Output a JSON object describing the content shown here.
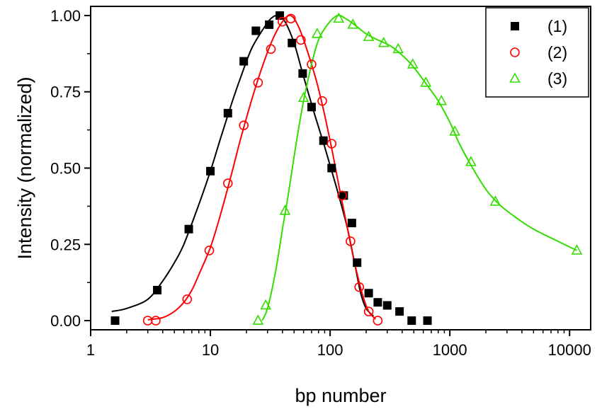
{
  "chart_data": {
    "type": "scatter",
    "xlabel": "bp number",
    "ylabel": "Intensity (normalized)",
    "x_scale": "log",
    "xlim": [
      1,
      15000
    ],
    "ylim": [
      -0.03,
      1.03
    ],
    "x_ticks": [
      1,
      10,
      100,
      1000,
      10000
    ],
    "x_tick_labels": [
      "1",
      "10",
      "100",
      "1000",
      "10000"
    ],
    "y_ticks": [
      0,
      0.25,
      0.5,
      0.75,
      1.0
    ],
    "y_tick_labels": [
      "0.00",
      "0.25",
      "0.50",
      "0.75",
      "1.00"
    ],
    "legend_position": "top-right",
    "series": [
      {
        "name": "(1)",
        "color": "#000000",
        "marker": "filled-square",
        "points": [
          [
            1.6,
            0.0
          ],
          [
            3.6,
            0.1
          ],
          [
            6.6,
            0.3
          ],
          [
            10,
            0.49
          ],
          [
            14,
            0.68
          ],
          [
            19,
            0.85
          ],
          [
            24,
            0.95
          ],
          [
            31,
            0.97
          ],
          [
            38,
            1.0
          ],
          [
            48,
            0.91
          ],
          [
            59,
            0.81
          ],
          [
            70,
            0.7
          ],
          [
            88,
            0.59
          ],
          [
            103,
            0.5
          ],
          [
            130,
            0.41
          ],
          [
            152,
            0.32
          ],
          [
            168,
            0.19
          ],
          [
            210,
            0.09
          ],
          [
            250,
            0.06
          ],
          [
            300,
            0.05
          ],
          [
            380,
            0.03
          ],
          [
            480,
            0.0
          ],
          [
            650,
            0.0
          ]
        ],
        "fit": [
          [
            1.5,
            0.03
          ],
          [
            2,
            0.04
          ],
          [
            3,
            0.07
          ],
          [
            4,
            0.13
          ],
          [
            5,
            0.19
          ],
          [
            6,
            0.25
          ],
          [
            8,
            0.38
          ],
          [
            10,
            0.49
          ],
          [
            12,
            0.59
          ],
          [
            15,
            0.71
          ],
          [
            18,
            0.8
          ],
          [
            22,
            0.89
          ],
          [
            27,
            0.95
          ],
          [
            32,
            0.99
          ],
          [
            37,
            1.0
          ],
          [
            42,
            0.98
          ],
          [
            50,
            0.91
          ],
          [
            60,
            0.8
          ],
          [
            75,
            0.67
          ],
          [
            90,
            0.57
          ],
          [
            105,
            0.48
          ],
          [
            120,
            0.4
          ],
          [
            140,
            0.3
          ],
          [
            160,
            0.19
          ],
          [
            180,
            0.09
          ],
          [
            200,
            0.04
          ],
          [
            230,
            0.015
          ]
        ]
      },
      {
        "name": "(2)",
        "color": "#ff0000",
        "marker": "open-circle",
        "points": [
          [
            3.0,
            0.0
          ],
          [
            3.5,
            0.0
          ],
          [
            6.4,
            0.07
          ],
          [
            9.8,
            0.23
          ],
          [
            14,
            0.45
          ],
          [
            19,
            0.64
          ],
          [
            25,
            0.78
          ],
          [
            32,
            0.89
          ],
          [
            40,
            0.98
          ],
          [
            47,
            0.99
          ],
          [
            57,
            0.92
          ],
          [
            70,
            0.84
          ],
          [
            86,
            0.72
          ],
          [
            103,
            0.58
          ],
          [
            126,
            0.41
          ],
          [
            148,
            0.26
          ],
          [
            175,
            0.11
          ],
          [
            210,
            0.03
          ],
          [
            250,
            0.0
          ]
        ],
        "fit": [
          [
            3,
            0.003
          ],
          [
            4,
            0.01
          ],
          [
            5,
            0.03
          ],
          [
            6,
            0.06
          ],
          [
            7,
            0.1
          ],
          [
            8,
            0.15
          ],
          [
            10,
            0.24
          ],
          [
            12,
            0.34
          ],
          [
            15,
            0.48
          ],
          [
            18,
            0.6
          ],
          [
            22,
            0.72
          ],
          [
            27,
            0.83
          ],
          [
            33,
            0.92
          ],
          [
            40,
            0.98
          ],
          [
            47,
            1.0
          ],
          [
            55,
            0.96
          ],
          [
            65,
            0.88
          ],
          [
            80,
            0.76
          ],
          [
            100,
            0.59
          ],
          [
            120,
            0.43
          ],
          [
            140,
            0.3
          ],
          [
            160,
            0.19
          ],
          [
            185,
            0.09
          ],
          [
            210,
            0.03
          ],
          [
            240,
            0.005
          ]
        ]
      },
      {
        "name": "(3)",
        "color": "#33dd00",
        "marker": "open-triangle",
        "points": [
          [
            25,
            0.0
          ],
          [
            29,
            0.05
          ],
          [
            42,
            0.36
          ],
          [
            60,
            0.73
          ],
          [
            78,
            0.94
          ],
          [
            118,
            0.99
          ],
          [
            155,
            0.97
          ],
          [
            210,
            0.93
          ],
          [
            280,
            0.91
          ],
          [
            370,
            0.89
          ],
          [
            490,
            0.84
          ],
          [
            630,
            0.78
          ],
          [
            850,
            0.72
          ],
          [
            1100,
            0.62
          ],
          [
            1500,
            0.52
          ],
          [
            2400,
            0.39
          ],
          [
            11500,
            0.23
          ]
        ],
        "fit": [
          [
            27,
            0.0
          ],
          [
            30,
            0.04
          ],
          [
            35,
            0.16
          ],
          [
            40,
            0.3
          ],
          [
            45,
            0.42
          ],
          [
            52,
            0.58
          ],
          [
            60,
            0.72
          ],
          [
            70,
            0.84
          ],
          [
            80,
            0.92
          ],
          [
            95,
            0.97
          ],
          [
            115,
            1.0
          ],
          [
            135,
            0.99
          ],
          [
            160,
            0.97
          ],
          [
            200,
            0.94
          ],
          [
            250,
            0.92
          ],
          [
            320,
            0.9
          ],
          [
            400,
            0.87
          ],
          [
            500,
            0.83
          ],
          [
            650,
            0.77
          ],
          [
            800,
            0.72
          ],
          [
            1000,
            0.65
          ],
          [
            1200,
            0.58
          ],
          [
            1500,
            0.51
          ],
          [
            2000,
            0.43
          ],
          [
            2600,
            0.38
          ],
          [
            3500,
            0.34
          ],
          [
            5000,
            0.3
          ],
          [
            8000,
            0.26
          ],
          [
            11500,
            0.23
          ]
        ]
      }
    ]
  }
}
